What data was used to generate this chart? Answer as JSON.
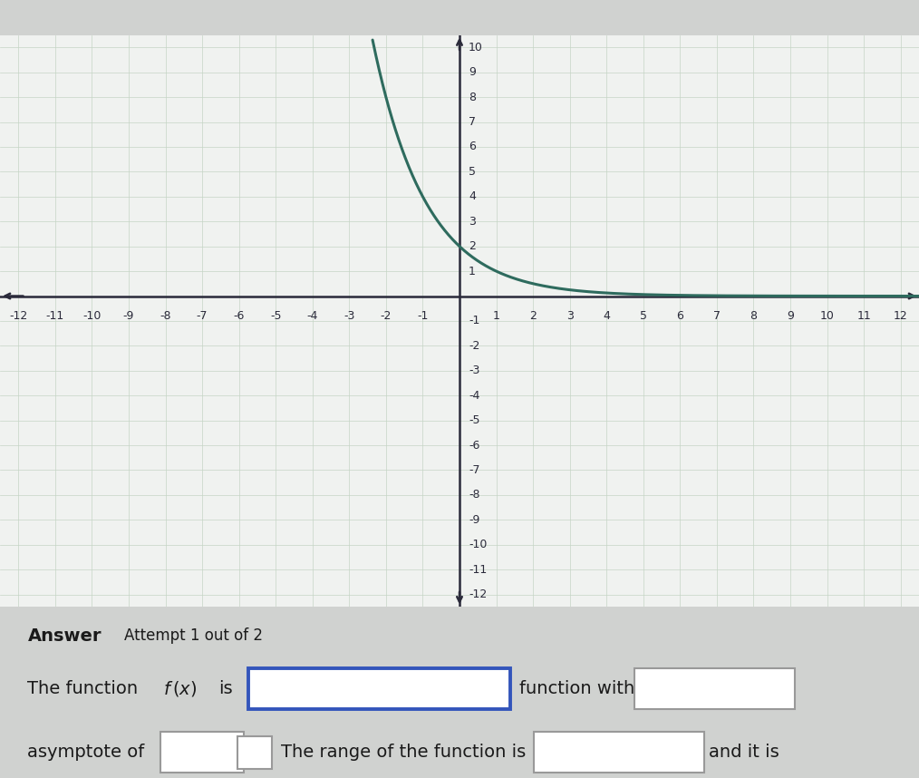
{
  "xlim": [
    -12.5,
    12.5
  ],
  "ylim": [
    -12.5,
    10.5
  ],
  "xticks": [
    -12,
    -11,
    -10,
    -9,
    -8,
    -7,
    -6,
    -5,
    -4,
    -3,
    -2,
    -1,
    1,
    2,
    3,
    4,
    5,
    6,
    7,
    8,
    9,
    10,
    11,
    12
  ],
  "yticks": [
    -12,
    -11,
    -10,
    -9,
    -8,
    -7,
    -6,
    -5,
    -4,
    -3,
    -2,
    -1,
    1,
    2,
    3,
    4,
    5,
    6,
    7,
    8,
    9,
    10
  ],
  "curve_color": "#2e6b5e",
  "curve_linewidth": 2.2,
  "grid_color": "#c5d5c5",
  "grid_linewidth": 0.5,
  "axis_color": "#2a2a3a",
  "graph_bg_color": "#f0f2f0",
  "left_bg_color": "#d8d8d8",
  "top_bar_color": "#1a1a1a",
  "bottom_bg_color": "#d0d2d0",
  "text_color": "#1a1a1a",
  "box1_border_color": "#3355bb",
  "box2_border_color": "#999999",
  "tick_fontsize": 9,
  "figure_width": 10.14,
  "figure_height": 8.58
}
